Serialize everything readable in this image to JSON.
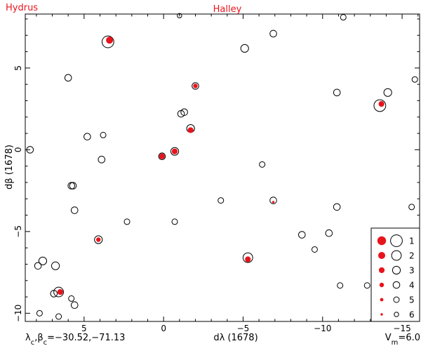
{
  "chart_data": {
    "type": "scatter",
    "title_left": "Hydrus",
    "title_right": "Halley",
    "xlabel": "dλ (1678)",
    "ylabel": "dβ (1678)",
    "xlim": [
      8.7,
      -16.1
    ],
    "ylim": [
      -10.5,
      8.3
    ],
    "xticks": [
      5,
      0,
      -5,
      -10,
      -15
    ],
    "xtick_labels": [
      "5",
      "0",
      "−5",
      "−10",
      "−15"
    ],
    "yticks": [
      5,
      0,
      -5,
      -10
    ],
    "ytick_labels": [
      "5",
      "0",
      "−5",
      "−10"
    ],
    "footer_left_html": "λ<tspan baseline-shift='sub' font-size='10'>c</tspan>,β<tspan baseline-shift='sub' font-size='10'>c</tspan>=−30.52,−71.13",
    "footer_left": "λc,βc=−30.52,−71.13",
    "footer_right": "Vm=6.0",
    "legend": {
      "placement": "bottom-right",
      "magnitudes": [
        "1",
        "2",
        "3",
        "4",
        "5",
        "6"
      ]
    },
    "colors": {
      "halley": "#e8141c",
      "hydrus": "#000000",
      "title": "#e8141c"
    },
    "series": [
      {
        "name": "Hydrus",
        "marker": "open-circle",
        "points": [
          {
            "x": 3.5,
            "y": 6.6,
            "mag": 1
          },
          {
            "x": -5.1,
            "y": 6.2,
            "mag": 3
          },
          {
            "x": -6.9,
            "y": 7.1,
            "mag": 4
          },
          {
            "x": -1.0,
            "y": 8.2,
            "mag": 6
          },
          {
            "x": -11.3,
            "y": 8.1,
            "mag": 5
          },
          {
            "x": 6.0,
            "y": 4.4,
            "mag": 4
          },
          {
            "x": -10.9,
            "y": 3.5,
            "mag": 4
          },
          {
            "x": -14.1,
            "y": 3.5,
            "mag": 3
          },
          {
            "x": -15.8,
            "y": 4.3,
            "mag": 5
          },
          {
            "x": -13.6,
            "y": 2.7,
            "mag": 1
          },
          {
            "x": -2.0,
            "y": 3.9,
            "mag": 4
          },
          {
            "x": -1.1,
            "y": 2.2,
            "mag": 4
          },
          {
            "x": -1.3,
            "y": 2.3,
            "mag": 4
          },
          {
            "x": -1.7,
            "y": 1.3,
            "mag": 3
          },
          {
            "x": 4.8,
            "y": 0.8,
            "mag": 4
          },
          {
            "x": 3.8,
            "y": 0.9,
            "mag": 5
          },
          {
            "x": 8.4,
            "y": 0.0,
            "mag": 4
          },
          {
            "x": 0.1,
            "y": -0.4,
            "mag": 4
          },
          {
            "x": -0.7,
            "y": -0.1,
            "mag": 3
          },
          {
            "x": 3.9,
            "y": -0.6,
            "mag": 4
          },
          {
            "x": -6.2,
            "y": -0.9,
            "mag": 5
          },
          {
            "x": 5.8,
            "y": -2.2,
            "mag": 4
          },
          {
            "x": 5.7,
            "y": -2.2,
            "mag": 4
          },
          {
            "x": -3.6,
            "y": -3.1,
            "mag": 5
          },
          {
            "x": -6.9,
            "y": -3.1,
            "mag": 4
          },
          {
            "x": 5.6,
            "y": -3.7,
            "mag": 4
          },
          {
            "x": -10.9,
            "y": -3.5,
            "mag": 4
          },
          {
            "x": -15.6,
            "y": -3.5,
            "mag": 5
          },
          {
            "x": 2.3,
            "y": -4.4,
            "mag": 5
          },
          {
            "x": -0.7,
            "y": -4.4,
            "mag": 5
          },
          {
            "x": -8.7,
            "y": -5.2,
            "mag": 4
          },
          {
            "x": -10.4,
            "y": -5.1,
            "mag": 4
          },
          {
            "x": 4.1,
            "y": -5.5,
            "mag": 3
          },
          {
            "x": -9.5,
            "y": -6.1,
            "mag": 5
          },
          {
            "x": -5.3,
            "y": -6.6,
            "mag": 2
          },
          {
            "x": 7.6,
            "y": -6.8,
            "mag": 3
          },
          {
            "x": 7.9,
            "y": -7.1,
            "mag": 4
          },
          {
            "x": 6.8,
            "y": -7.1,
            "mag": 3
          },
          {
            "x": -11.1,
            "y": -8.3,
            "mag": 5
          },
          {
            "x": -12.8,
            "y": -8.3,
            "mag": 5
          },
          {
            "x": 6.6,
            "y": -8.7,
            "mag": 2
          },
          {
            "x": 6.9,
            "y": -8.8,
            "mag": 4
          },
          {
            "x": 5.8,
            "y": -9.1,
            "mag": 5
          },
          {
            "x": 5.6,
            "y": -9.5,
            "mag": 4
          },
          {
            "x": 7.8,
            "y": -10.0,
            "mag": 5
          },
          {
            "x": 6.6,
            "y": -10.2,
            "mag": 5
          }
        ]
      },
      {
        "name": "Halley",
        "marker": "filled-circle",
        "points": [
          {
            "x": 3.4,
            "y": 6.7,
            "mag": 2
          },
          {
            "x": -2.0,
            "y": 3.9,
            "mag": 4
          },
          {
            "x": -13.7,
            "y": 2.8,
            "mag": 3
          },
          {
            "x": -1.7,
            "y": 1.2,
            "mag": 3
          },
          {
            "x": 0.1,
            "y": -0.4,
            "mag": 3
          },
          {
            "x": -0.7,
            "y": -0.1,
            "mag": 3
          },
          {
            "x": -6.9,
            "y": -3.2,
            "mag": 6
          },
          {
            "x": 4.1,
            "y": -5.5,
            "mag": 4
          },
          {
            "x": -5.3,
            "y": -6.7,
            "mag": 3
          },
          {
            "x": 6.5,
            "y": -8.7,
            "mag": 3
          }
        ]
      }
    ]
  }
}
